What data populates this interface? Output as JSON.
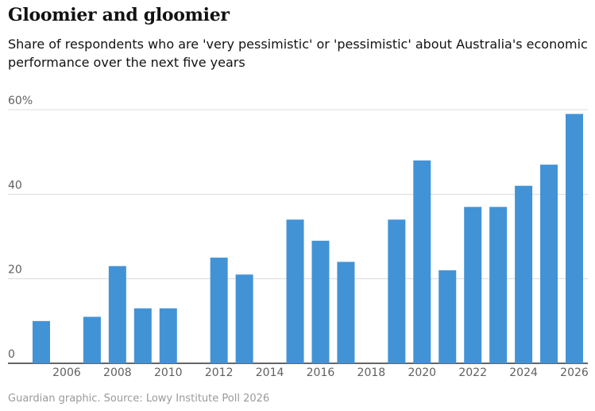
{
  "chart_data": {
    "type": "bar",
    "title": "Gloomier and gloomier",
    "subtitle": "Share of respondents who are 'very pessimistic' or 'pessimistic' about Australia's economic performance over the next five years",
    "source": "Guardian graphic. Source: Lowy Institute Poll 2026",
    "x": [
      2005,
      2007,
      2008,
      2009,
      2010,
      2012,
      2013,
      2015,
      2016,
      2017,
      2019,
      2020,
      2021,
      2022,
      2023,
      2024,
      2025,
      2026
    ],
    "values": [
      10,
      11,
      23,
      13,
      13,
      25,
      21,
      34,
      29,
      24,
      34,
      48,
      22,
      37,
      37,
      42,
      47,
      59
    ],
    "x_range": [
      2005,
      2026
    ],
    "x_ticks": [
      "2006",
      "2008",
      "2010",
      "2012",
      "2014",
      "2016",
      "2018",
      "2020",
      "2022",
      "2024",
      "2026"
    ],
    "y_ticks": [
      "0",
      "20",
      "40",
      "60%"
    ],
    "ylim": [
      0,
      60
    ],
    "grid": true,
    "bar_color": "#4293d6"
  }
}
